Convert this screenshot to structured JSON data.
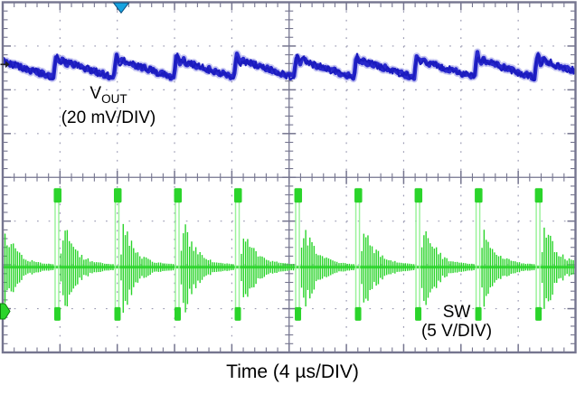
{
  "labels": {
    "ch1_symbol": "V",
    "ch1_subscript": "OUT",
    "ch1_scale": "(20 mV/DIV)",
    "ch2_symbol": "SW",
    "ch2_scale": "(5 V/DIV)",
    "time_axis": "Time (4 µs/DIV)"
  },
  "colors": {
    "background": "#ffffff",
    "text": "#000000",
    "grid": "#75758f",
    "grid_dots": "#9a9ab2",
    "ch1": "#2828cc",
    "ch1_deep": "#1b1bbe",
    "ch1_halo": "#7d7de0",
    "ch2": "#2ad42a",
    "ch2_halo": "#97f297",
    "trigger_marker": "#17a3e0",
    "ch1_marker": "#222222",
    "ch2_marker_stroke": "#0b860b"
  },
  "chart_data": {
    "type": "line",
    "subtype": "oscilloscope",
    "title": "",
    "xlabel": "Time (4 µs/DIV)",
    "ylabel": "",
    "time_per_div_us": 4,
    "divisions": {
      "x": 10,
      "y": 8
    },
    "grid_style": "dotted gridlines with center crosshair and edge tick marks",
    "visible_cycles": 10,
    "trigger_marker": {
      "position": "top-edge",
      "time_us": 8.27
    },
    "series": [
      {
        "name": "VOUT",
        "label": "V OUT (20 mV/DIV)",
        "color": "blue",
        "scale_per_div_mV": 20,
        "zero_ref_div_from_top": 1.42,
        "period_us": 4.2,
        "first_edge_us": 3.54,
        "waveform": "output ripple sawtooth: sharp rise with small overshoot ring, then linear decay",
        "ripple_max_mV": 2.5,
        "ripple_min_mV": -6,
        "overshoot_mV": 2.2,
        "noise_band_mV": 2.4
      },
      {
        "name": "SW",
        "label": "SW (5 V/DIV)",
        "color": "green",
        "scale_per_div_V": 5,
        "zero_ref_div_from_top": 6.05,
        "ref_marker_div_from_top": 7.06,
        "period_us": 4.2,
        "first_pulse_us": 3.66,
        "waveform": "switch-node pulse each cycle: high pulse, negative undershoot spike, then decaying DCM ringing back to 0 V baseline",
        "pulse_top_V": 8.8,
        "undershoot_V": -5.3,
        "ring_initial_amplitude_V": 5.8,
        "ring_decay_const_us": 0.85,
        "baseline_V": 0
      }
    ]
  }
}
